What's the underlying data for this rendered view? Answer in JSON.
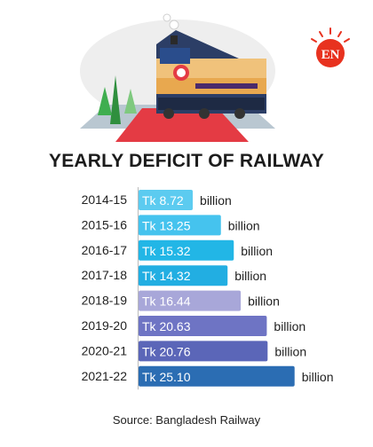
{
  "brand": {
    "logo_text": "EN",
    "accent": "#e8321f"
  },
  "chart_data": {
    "type": "bar",
    "orientation": "horizontal",
    "title": "YEARLY DEFICIT OF RAILWAY",
    "categories": [
      "2014-15",
      "2015-16",
      "2016-17",
      "2017-18",
      "2018-19",
      "2019-20",
      "2020-21",
      "2021-22"
    ],
    "values": [
      8.72,
      13.25,
      15.32,
      14.32,
      16.44,
      20.63,
      20.76,
      25.1
    ],
    "value_labels": [
      "Tk 8.72",
      "Tk 13.25",
      "Tk 15.32",
      "Tk 14.32",
      "Tk 16.44",
      "Tk 20.63",
      "Tk 20.76",
      "Tk 25.10"
    ],
    "unit": "billion",
    "bar_colors": [
      "#5ccbf0",
      "#45c3ee",
      "#22b6e6",
      "#22aee2",
      "#a8a7d9",
      "#6e74c4",
      "#5b66b8",
      "#2b6db3"
    ],
    "grid": false,
    "legend": "none"
  },
  "footer": {
    "source": "Source: Bangladesh Railway"
  }
}
